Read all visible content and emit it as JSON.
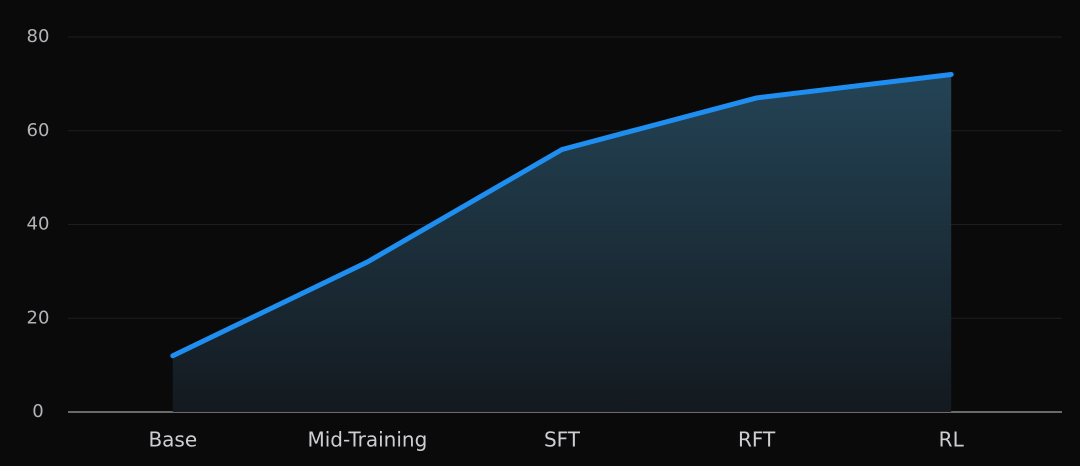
{
  "chart_data": {
    "type": "area",
    "categories": [
      "Base",
      "Mid-Training",
      "SFT",
      "RFT",
      "RL"
    ],
    "values": [
      12,
      32,
      56,
      67,
      72
    ],
    "color": "#1f8ef1",
    "ylim": [
      0,
      80
    ],
    "yticks": [
      0,
      20,
      40,
      60,
      80
    ],
    "grid": true
  }
}
